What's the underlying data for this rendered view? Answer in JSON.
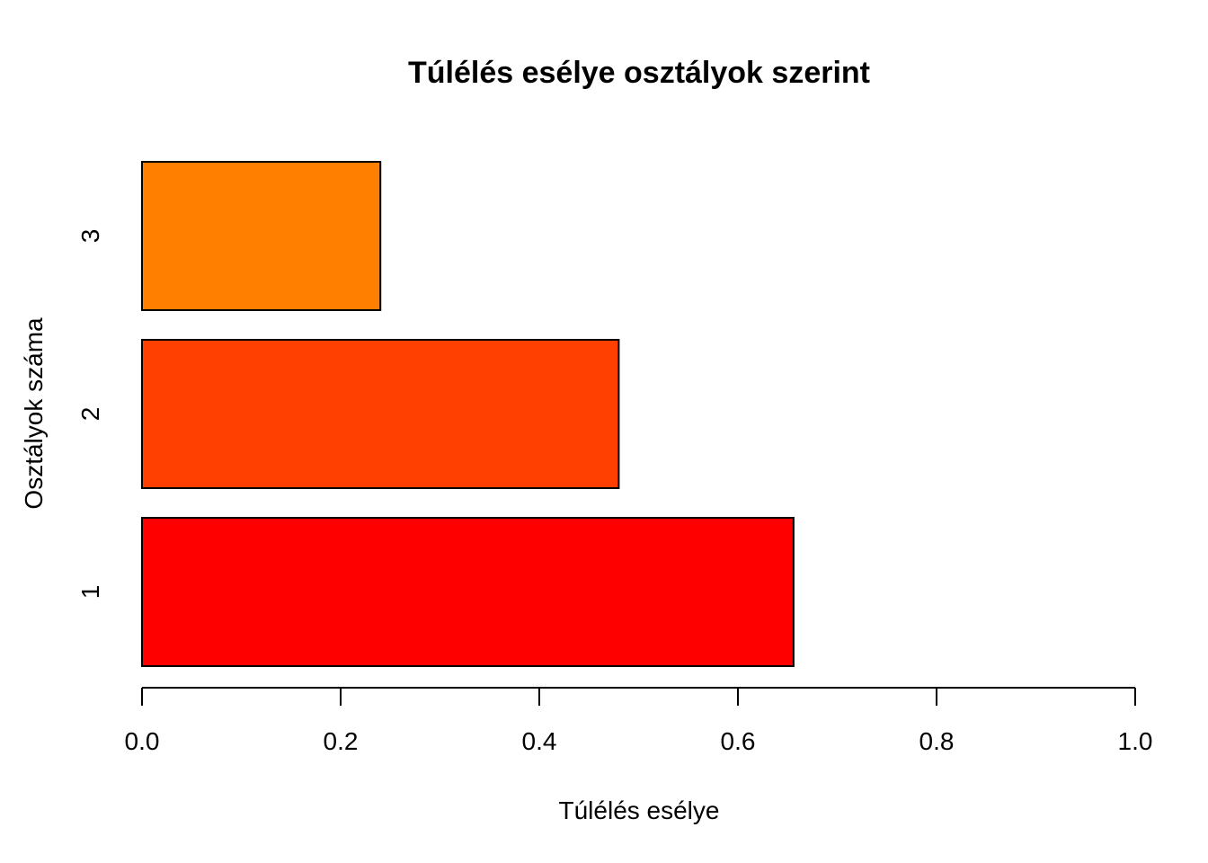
{
  "chart_data": {
    "type": "bar",
    "orientation": "horizontal",
    "title": "Túlélés esélye osztályok szerint",
    "xlabel": "Túlélés esélye",
    "ylabel": "Osztályok száma",
    "categories": [
      "1",
      "2",
      "3"
    ],
    "values": [
      0.656,
      0.48,
      0.24
    ],
    "colors": [
      "#FF0000",
      "#FF4000",
      "#FF8000"
    ],
    "xlim": [
      0,
      1
    ],
    "xticks": [
      0.0,
      0.2,
      0.4,
      0.6,
      0.8,
      1.0
    ],
    "xtick_labels": [
      "0.0",
      "0.2",
      "0.4",
      "0.6",
      "0.8",
      "1.0"
    ],
    "grid": false,
    "legend": "none"
  }
}
